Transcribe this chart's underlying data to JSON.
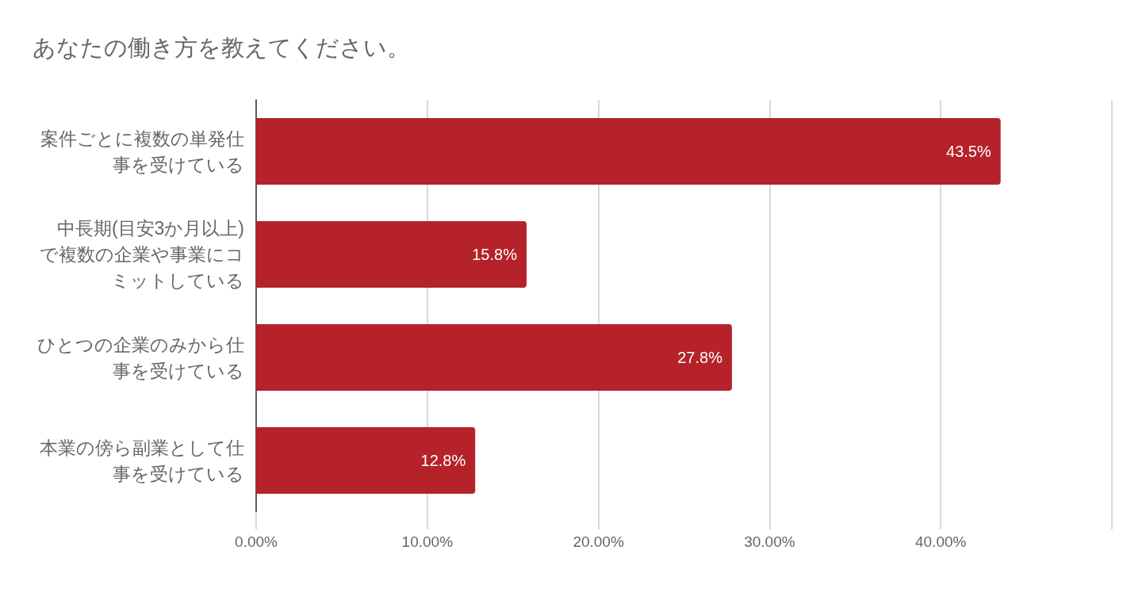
{
  "chart_data": {
    "type": "bar",
    "orientation": "horizontal",
    "title": "あなたの働き方を教えてください。",
    "categories": [
      "案件ごとに複数の単発仕事を受けている",
      "中長期(目安3か月以上)で複数の企業や事業にコミットしている",
      "ひとつの企業のみから仕事を受けている",
      "本業の傍ら副業として仕事を受けている"
    ],
    "values": [
      43.5,
      15.8,
      27.8,
      12.8
    ],
    "value_labels": [
      "43.5%",
      "15.8%",
      "27.8%",
      "12.8%"
    ],
    "color": "#b5222a",
    "xlim": [
      0,
      50
    ],
    "xticks": [
      {
        "value": 0,
        "label": "0.00%"
      },
      {
        "value": 10,
        "label": "10.00%"
      },
      {
        "value": 20,
        "label": "20.00%"
      },
      {
        "value": 30,
        "label": "30.00%"
      },
      {
        "value": 40,
        "label": "40.00%"
      },
      {
        "value": 50,
        "label": null
      }
    ],
    "grid": "x"
  }
}
